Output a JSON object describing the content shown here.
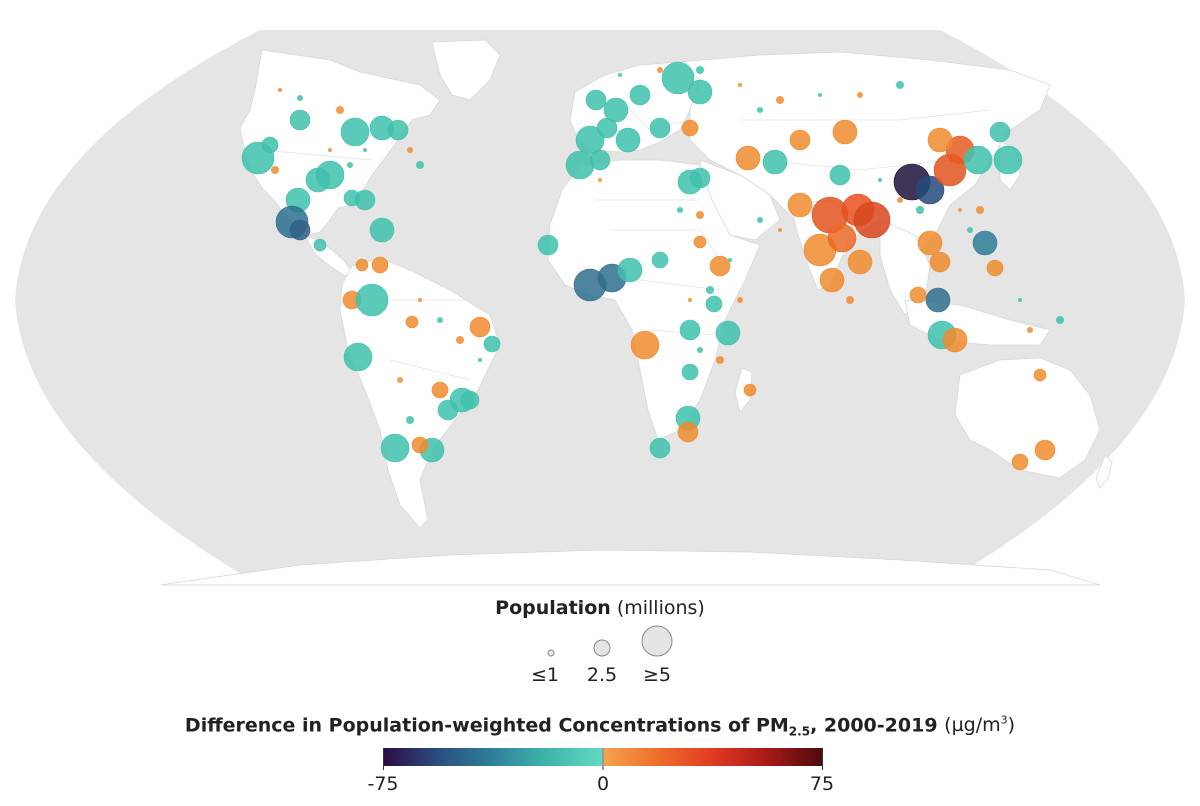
{
  "map": {
    "background_color": "#e5e5e5",
    "land_color": "#ffffff",
    "decrease_color": "#3fc1ad",
    "increase_color": "#f08b2e"
  },
  "population_legend": {
    "title": "Population",
    "unit": "(millions)",
    "items": [
      {
        "label": "≤1",
        "value": 1
      },
      {
        "label": "2.5",
        "value": 2.5
      },
      {
        "label": "≥5",
        "value": 5
      }
    ]
  },
  "color_legend": {
    "title": "Difference in Population-weighted Concentrations of PM",
    "subscript": "2.5",
    "title_suffix": ", 2000-2019",
    "unit_prefix": "(µg/m",
    "unit_sup": "3",
    "unit_suffix": ")",
    "range": [
      -75,
      75
    ],
    "ticks": [
      {
        "label": "-75",
        "value": -75
      },
      {
        "label": "0",
        "value": 0
      },
      {
        "label": "75",
        "value": 75
      }
    ],
    "negative_stops": [
      "#2d0a45",
      "#2a4e7e",
      "#2f7f9a",
      "#3fb5ab",
      "#62d9c4"
    ],
    "positive_stops": [
      "#f6a24f",
      "#ef6c2a",
      "#e03a22",
      "#a81818",
      "#4b0b0b"
    ]
  }
}
